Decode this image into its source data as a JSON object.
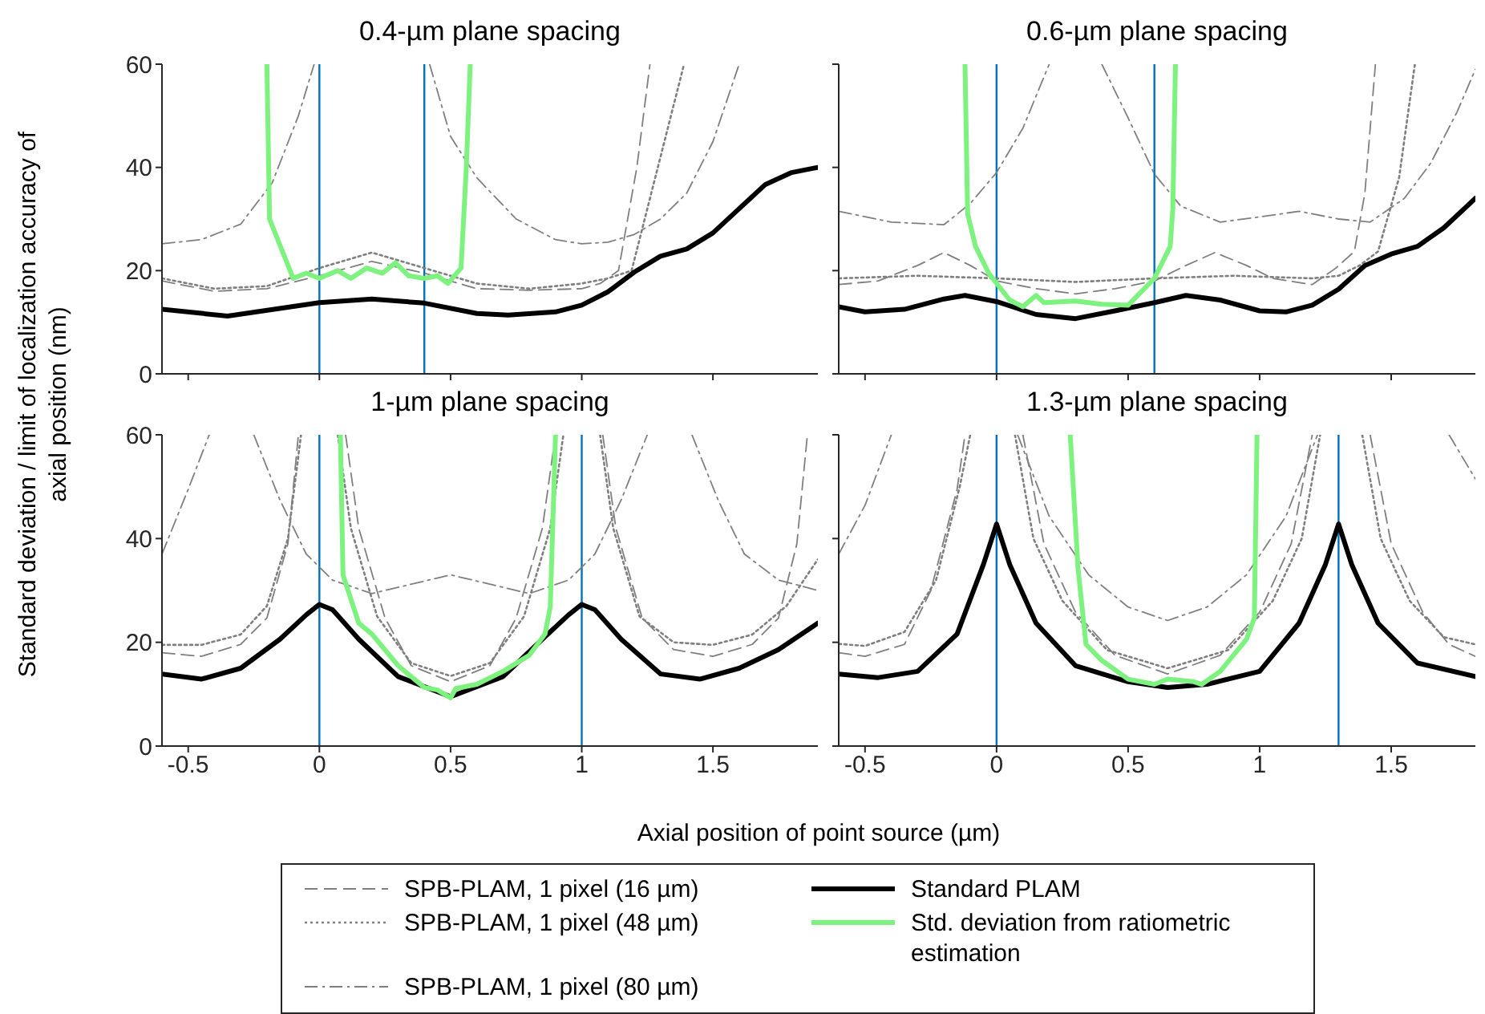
{
  "chart_data": [
    {
      "type": "line",
      "title": "0.4-µm plane spacing",
      "xlabel": "Axial position of point source (µm)",
      "ylabel": "Standard deviation / limit of localization accuracy of axial position (nm)",
      "xlim": [
        -0.6,
        1.9
      ],
      "xticks": [
        -0.5,
        0,
        0.5,
        1,
        1.5
      ],
      "ylim": [
        0,
        60
      ],
      "yticks": [
        0,
        20,
        40,
        60
      ],
      "tick_labels": "y",
      "marker": "none",
      "legend": "bottom",
      "ref_lines": [
        {
          "axis": "x",
          "value": 0,
          "color": "#0072bd"
        },
        {
          "axis": "x",
          "value": 0.4,
          "color": "#0072bd"
        }
      ],
      "series": [
        {
          "name": "SPB-PLAM, 1 pixel (16 µm)",
          "color": "#7f7f7f",
          "line_style": "dashed",
          "x": [
            -0.6,
            -0.4,
            -0.2,
            0,
            0.2,
            0.4,
            0.6,
            0.8,
            1.0,
            1.07,
            1.14,
            1.21,
            1.26
          ],
          "values": [
            18,
            16,
            16.5,
            19,
            21.8,
            19.5,
            16.5,
            16.2,
            16.5,
            17.5,
            20,
            40,
            60
          ]
        },
        {
          "name": "SPB-PLAM, 1 pixel (48 µm)",
          "color": "#7f7f7f",
          "line_style": "dotted",
          "x": [
            -0.6,
            -0.4,
            -0.2,
            0,
            0.2,
            0.4,
            0.6,
            0.8,
            1.0,
            1.1,
            1.19,
            1.29,
            1.39
          ],
          "values": [
            18.5,
            16.5,
            17,
            20.5,
            23.5,
            20.5,
            17.5,
            16.5,
            17.5,
            18.5,
            20,
            40,
            60
          ]
        },
        {
          "name": "SPB-PLAM, 1 pixel (80 µm)",
          "color": "#7f7f7f",
          "line_style": "dashdot",
          "x": [
            -0.6,
            -0.45,
            -0.3,
            -0.18,
            -0.08,
            -0.02,
            0.2,
            0.42,
            0.5,
            0.6,
            0.75,
            0.9,
            1.0,
            1.1,
            1.2,
            1.3,
            1.4,
            1.5,
            1.6
          ],
          "values": [
            25.2,
            26,
            29,
            37,
            50,
            60,
            null,
            60,
            46,
            38,
            30,
            26,
            25.2,
            25.5,
            27,
            30,
            35,
            45,
            60
          ]
        },
        {
          "name": "Standard PLAM",
          "color": "#000000",
          "line_style": "solid",
          "x": [
            -0.6,
            -0.35,
            0,
            0.2,
            0.4,
            0.6,
            0.72,
            0.9,
            1.0,
            1.1,
            1.2,
            1.3,
            1.4,
            1.5,
            1.6,
            1.7,
            1.8,
            1.9
          ],
          "values": [
            12.5,
            11.2,
            13.8,
            14.5,
            13.7,
            11.7,
            11.4,
            12,
            13.3,
            15.9,
            19.7,
            22.8,
            24.2,
            27.3,
            32,
            36.7,
            39,
            40
          ]
        },
        {
          "name": "Std. deviation from ratiometric estimation",
          "color": "#7ef27e",
          "line_style": "solid",
          "x": [
            -0.2,
            -0.19,
            -0.1,
            -0.05,
            0,
            0.07,
            0.12,
            0.18,
            0.24,
            0.29,
            0.34,
            0.4,
            0.45,
            0.49,
            0.54,
            0.56,
            0.575
          ],
          "values": [
            60,
            30,
            18.5,
            19.5,
            18.5,
            20,
            18.5,
            20.5,
            19.5,
            21.5,
            19,
            18.5,
            19,
            17.5,
            20.5,
            40,
            60
          ]
        }
      ]
    },
    {
      "type": "line",
      "title": "0.6-µm plane spacing",
      "xlim": [
        -0.6,
        1.82
      ],
      "xticks": [
        -0.5,
        0,
        0.5,
        1,
        1.5
      ],
      "ylim": [
        0,
        60
      ],
      "yticks": [
        0,
        20,
        40,
        60
      ],
      "tick_labels": false,
      "marker": "none",
      "ref_lines": [
        {
          "axis": "x",
          "value": 0,
          "color": "#0072bd"
        },
        {
          "axis": "x",
          "value": 0.6,
          "color": "#0072bd"
        }
      ],
      "series": [
        {
          "color": "#7f7f7f",
          "line_style": "dashed",
          "x": [
            -0.6,
            -0.45,
            -0.3,
            -0.2,
            -0.1,
            0,
            0.15,
            0.3,
            0.45,
            0.6,
            0.72,
            0.83,
            0.95,
            1.05,
            1.2,
            1.29,
            1.36,
            1.4,
            1.44
          ],
          "values": [
            17.3,
            18,
            21,
            23.5,
            21,
            18,
            16.5,
            15.5,
            16.5,
            18,
            21,
            23.5,
            21,
            18.5,
            17.3,
            20.5,
            23.7,
            35,
            60
          ]
        },
        {
          "color": "#7f7f7f",
          "line_style": "dotted",
          "x": [
            -0.6,
            -0.3,
            0,
            0.3,
            0.6,
            0.9,
            1.2,
            1.3,
            1.38,
            1.45,
            1.53,
            1.59
          ],
          "values": [
            18.5,
            19,
            18.5,
            17.8,
            18.5,
            19,
            18.5,
            19,
            21,
            23.7,
            38,
            60
          ]
        },
        {
          "color": "#7f7f7f",
          "line_style": "dashdot",
          "x": [
            -0.6,
            -0.4,
            -0.2,
            -0.1,
            0,
            0.1,
            0.2,
            0.3,
            0.4,
            0.5,
            0.6,
            0.7,
            0.85,
            1.0,
            1.15,
            1.3,
            1.42,
            1.55,
            1.65,
            1.75,
            1.82
          ],
          "values": [
            31.5,
            29.4,
            28.9,
            33,
            39,
            47.6,
            60,
            null,
            60,
            49.6,
            38.7,
            32.5,
            29.4,
            30.4,
            31.5,
            30,
            29.4,
            34,
            40.8,
            50.7,
            59
          ]
        },
        {
          "color": "#000000",
          "line_style": "solid",
          "x": [
            -0.6,
            -0.5,
            -0.35,
            -0.2,
            -0.12,
            0,
            0.15,
            0.3,
            0.45,
            0.6,
            0.72,
            0.85,
            1.0,
            1.1,
            1.2,
            1.3,
            1.4,
            1.5,
            1.6,
            1.7,
            1.82
          ],
          "values": [
            13,
            12,
            12.5,
            14.5,
            15.2,
            14,
            11.5,
            10.7,
            12.2,
            13.8,
            15.2,
            14.3,
            12.2,
            12,
            13.3,
            16.4,
            21,
            23.2,
            24.7,
            28.3,
            34
          ]
        },
        {
          "color": "#7ef27e",
          "line_style": "solid",
          "x": [
            -0.12,
            -0.11,
            -0.08,
            -0.03,
            0.05,
            0.1,
            0.15,
            0.18,
            0.3,
            0.4,
            0.5,
            0.6,
            0.66,
            0.67,
            0.68
          ],
          "values": [
            60,
            31,
            24.7,
            19.5,
            14.3,
            13,
            15.2,
            13.8,
            14.1,
            13.5,
            13.3,
            18.5,
            24.7,
            32,
            60
          ]
        }
      ]
    },
    {
      "type": "line",
      "title": "1-µm plane spacing",
      "xlim": [
        -0.6,
        1.9
      ],
      "xticks": [
        -0.5,
        0,
        0.5,
        1,
        1.5
      ],
      "ylim": [
        0,
        60
      ],
      "yticks": [
        0,
        20,
        40,
        60
      ],
      "marker": "none",
      "ref_lines": [
        {
          "axis": "x",
          "value": 0,
          "color": "#0072bd"
        },
        {
          "axis": "x",
          "value": 1,
          "color": "#0072bd"
        }
      ],
      "series": [
        {
          "color": "#7f7f7f",
          "line_style": "dashed",
          "x": [
            -0.6,
            -0.45,
            -0.3,
            -0.2,
            -0.12,
            -0.08,
            0,
            0.1,
            0.15,
            0.25,
            0.35,
            0.5,
            0.65,
            0.75,
            0.85,
            0.9,
            1.0,
            1.08,
            1.13,
            1.23,
            1.35,
            1.5,
            1.65,
            1.75,
            1.82,
            1.86
          ],
          "values": [
            18,
            17.3,
            19.6,
            24.7,
            39,
            60,
            null,
            60,
            42,
            24.7,
            15.5,
            12.4,
            15.5,
            24.7,
            42,
            60,
            null,
            60,
            42,
            24.7,
            18.6,
            17.3,
            19.6,
            24.7,
            39,
            60
          ]
        },
        {
          "color": "#7f7f7f",
          "line_style": "dotted",
          "x": [
            -0.6,
            -0.45,
            -0.3,
            -0.2,
            -0.12,
            -0.07,
            0,
            0.07,
            0.12,
            0.22,
            0.35,
            0.5,
            0.65,
            0.78,
            0.88,
            0.93,
            1.0,
            1.07,
            1.12,
            1.22,
            1.35,
            1.5,
            1.65,
            1.78,
            1.9
          ],
          "values": [
            19.5,
            19.5,
            21.5,
            27,
            40,
            60,
            null,
            60,
            42,
            25,
            16,
            13.5,
            16,
            25,
            42,
            60,
            null,
            60,
            42,
            25,
            20,
            19.5,
            21.5,
            27,
            36
          ]
        },
        {
          "color": "#7f7f7f",
          "line_style": "dashdot",
          "x": [
            -0.6,
            -0.5,
            -0.42,
            -0.33,
            -0.25,
            -0.15,
            -0.05,
            0.05,
            0.2,
            0.5,
            0.8,
            0.95,
            1.05,
            1.15,
            1.25,
            1.33,
            1.42,
            1.52,
            1.62,
            1.75,
            1.9
          ],
          "values": [
            37,
            49.5,
            60,
            null,
            60,
            47.4,
            37,
            32,
            29.4,
            33,
            29.4,
            32,
            37,
            47.4,
            60,
            null,
            60,
            47.4,
            37,
            32,
            30
          ]
        },
        {
          "color": "#000000",
          "line_style": "solid",
          "x": [
            -0.6,
            -0.45,
            -0.3,
            -0.15,
            -0.05,
            0,
            0.05,
            0.15,
            0.3,
            0.5,
            0.7,
            0.85,
            0.95,
            1.0,
            1.05,
            1.15,
            1.3,
            1.45,
            1.6,
            1.75,
            1.9
          ],
          "values": [
            13.9,
            12.9,
            15,
            20.6,
            25.3,
            27.3,
            26.3,
            20.6,
            13.4,
            9.5,
            13.4,
            20.6,
            25.3,
            27.3,
            26.3,
            20.6,
            13.9,
            12.9,
            15,
            18.6,
            23.7
          ]
        },
        {
          "color": "#7ef27e",
          "line_style": "solid",
          "x": [
            0.08,
            0.09,
            0.15,
            0.2,
            0.3,
            0.4,
            0.45,
            0.5,
            0.52,
            0.6,
            0.7,
            0.8,
            0.86,
            0.88,
            0.9
          ],
          "values": [
            60,
            33,
            23.7,
            21.6,
            15.5,
            11.3,
            10.8,
            9.3,
            11.1,
            11.9,
            14.4,
            17.5,
            21.6,
            26.8,
            60
          ]
        }
      ]
    },
    {
      "type": "line",
      "title": "1.3-µm plane spacing",
      "xlim": [
        -0.6,
        1.82
      ],
      "xticks": [
        -0.5,
        0,
        0.5,
        1,
        1.5
      ],
      "ylim": [
        0,
        60
      ],
      "yticks": [
        0,
        20,
        40,
        60
      ],
      "tick_labels": "x",
      "marker": "none",
      "ref_lines": [
        {
          "axis": "x",
          "value": 0,
          "color": "#0072bd"
        },
        {
          "axis": "x",
          "value": 1.3,
          "color": "#0072bd"
        }
      ],
      "series": [
        {
          "color": "#7f7f7f",
          "line_style": "dashed",
          "x": [
            -0.6,
            -0.5,
            -0.35,
            -0.25,
            -0.15,
            -0.12,
            0,
            0.1,
            0.18,
            0.3,
            0.45,
            0.65,
            0.85,
            1.0,
            1.12,
            1.2,
            1.3,
            1.42,
            1.5,
            1.62,
            1.72,
            1.82
          ],
          "values": [
            18,
            17.3,
            19.6,
            30,
            49.5,
            60,
            null,
            60,
            39,
            25.8,
            17.5,
            13.9,
            17.5,
            25.8,
            39,
            60,
            null,
            60,
            39,
            25.8,
            19.6,
            17.3
          ]
        },
        {
          "color": "#7f7f7f",
          "line_style": "dotted",
          "x": [
            -0.6,
            -0.5,
            -0.35,
            -0.23,
            -0.14,
            -0.1,
            0,
            0.07,
            0.14,
            0.25,
            0.42,
            0.65,
            0.88,
            1.05,
            1.16,
            1.23,
            1.3,
            1.39,
            1.46,
            1.57,
            1.7,
            1.82
          ],
          "values": [
            19.7,
            19.3,
            22,
            32,
            50,
            60,
            null,
            60,
            40,
            28,
            18.5,
            15,
            18.5,
            28,
            40,
            60,
            null,
            60,
            40,
            28,
            21,
            19.6
          ]
        },
        {
          "color": "#7f7f7f",
          "line_style": "dashdot",
          "x": [
            -0.6,
            -0.5,
            -0.4,
            0,
            0.08,
            0.2,
            0.35,
            0.5,
            0.65,
            0.8,
            0.95,
            1.1,
            1.22,
            1.5,
            1.72,
            1.82
          ],
          "values": [
            37,
            46.4,
            60,
            null,
            60,
            44.3,
            33,
            26.8,
            24.2,
            26.8,
            33,
            44.3,
            60,
            null,
            60,
            51.5
          ]
        },
        {
          "color": "#000000",
          "line_style": "solid",
          "x": [
            -0.6,
            -0.45,
            -0.3,
            -0.15,
            -0.05,
            0,
            0.05,
            0.15,
            0.3,
            0.5,
            0.65,
            0.8,
            1.0,
            1.15,
            1.25,
            1.3,
            1.35,
            1.45,
            1.6,
            1.82
          ],
          "values": [
            13.9,
            13.2,
            14.4,
            21.6,
            35,
            42.8,
            35,
            23.7,
            15.5,
            12.4,
            11.3,
            11.9,
            14.4,
            23.7,
            35,
            42.8,
            35,
            23.7,
            16,
            13.4
          ]
        },
        {
          "color": "#7ef27e",
          "line_style": "solid",
          "x": [
            0.28,
            0.31,
            0.34,
            0.4,
            0.5,
            0.6,
            0.65,
            0.75,
            0.78,
            0.85,
            0.95,
            0.98,
            0.99
          ],
          "values": [
            60,
            34,
            19.6,
            16.5,
            12.9,
            11.9,
            12.9,
            12.4,
            11.9,
            14.4,
            20.6,
            24.7,
            60
          ]
        }
      ]
    }
  ]
}
